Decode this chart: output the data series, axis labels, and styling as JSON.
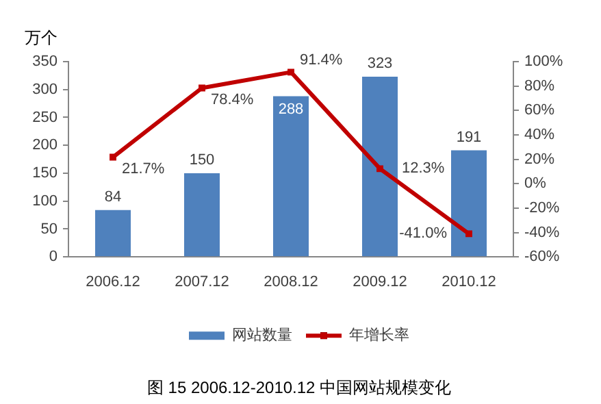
{
  "chart_data": {
    "type": "bar",
    "title": "图 15 2006.12-2010.12 中国网站规模变化",
    "ylabel": "万个",
    "categories": [
      "2006.12",
      "2007.12",
      "2008.12",
      "2009.12",
      "2010.12"
    ],
    "series": [
      {
        "name": "网站数量",
        "color": "#4f81bd",
        "values": [
          84,
          150,
          288,
          323,
          191
        ],
        "value_labels": [
          "84",
          "150",
          "288",
          "323",
          "191"
        ]
      },
      {
        "name": "年增长率",
        "type": "line",
        "axis": "y2",
        "color": "#c00000",
        "values": [
          21.7,
          78.4,
          91.4,
          12.3,
          -41.0
        ],
        "value_labels": [
          "21.7%",
          "78.4%",
          "91.4%",
          "12.3%",
          "-41.0%"
        ]
      }
    ],
    "ylim": [
      0,
      350
    ],
    "yticks": [
      0,
      50,
      100,
      150,
      200,
      250,
      300,
      350
    ],
    "y2lim": [
      -60,
      100
    ],
    "y2ticks": [
      {
        "value": -60,
        "label": "-60%"
      },
      {
        "value": -40,
        "label": "-40%"
      },
      {
        "value": -20,
        "label": "-20%"
      },
      {
        "value": 0,
        "label": "0%"
      },
      {
        "value": 20,
        "label": "20%"
      },
      {
        "value": 40,
        "label": "40%"
      },
      {
        "value": 60,
        "label": "60%"
      },
      {
        "value": 80,
        "label": "80%"
      },
      {
        "value": 100,
        "label": "100%"
      }
    ],
    "grid": false,
    "legend": "bottom",
    "marker": "square",
    "line_style": "solid"
  }
}
